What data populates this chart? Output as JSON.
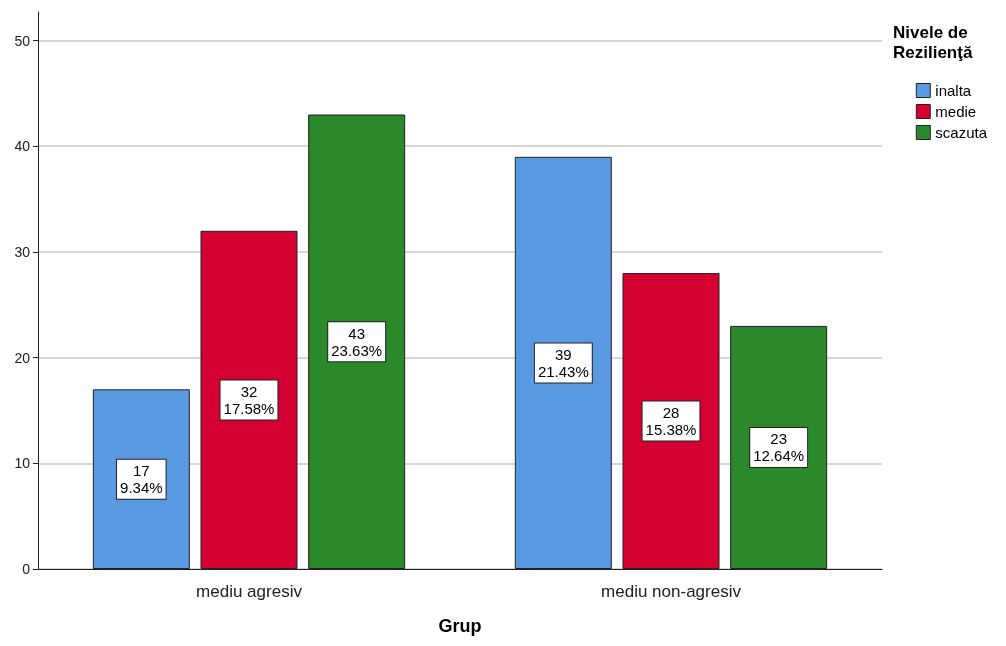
{
  "chart_data": {
    "type": "bar",
    "xlabel": "Grup",
    "legend_title": "Nivele de Rezilienţă",
    "categories": [
      "mediu agresiv",
      "mediu non-agresiv"
    ],
    "series": [
      {
        "name": "inalta",
        "color": "#5899e2",
        "values": [
          17,
          39
        ],
        "value_labels": [
          "17\n9.34%",
          "39\n21.43%"
        ]
      },
      {
        "name": "medie",
        "color": "#d50032",
        "values": [
          32,
          28
        ],
        "value_labels": [
          "32\n17.58%",
          "28\n15.38%"
        ]
      },
      {
        "name": "scazuta",
        "color": "#2b882b",
        "values": [
          43,
          23
        ],
        "value_labels": [
          "43\n23.63%",
          "23\n12.64%"
        ]
      }
    ],
    "ylim": [
      0,
      52.7
    ],
    "yticks": [
      0,
      10,
      20,
      30,
      40,
      50
    ],
    "grid": "y",
    "legend": "top right"
  }
}
